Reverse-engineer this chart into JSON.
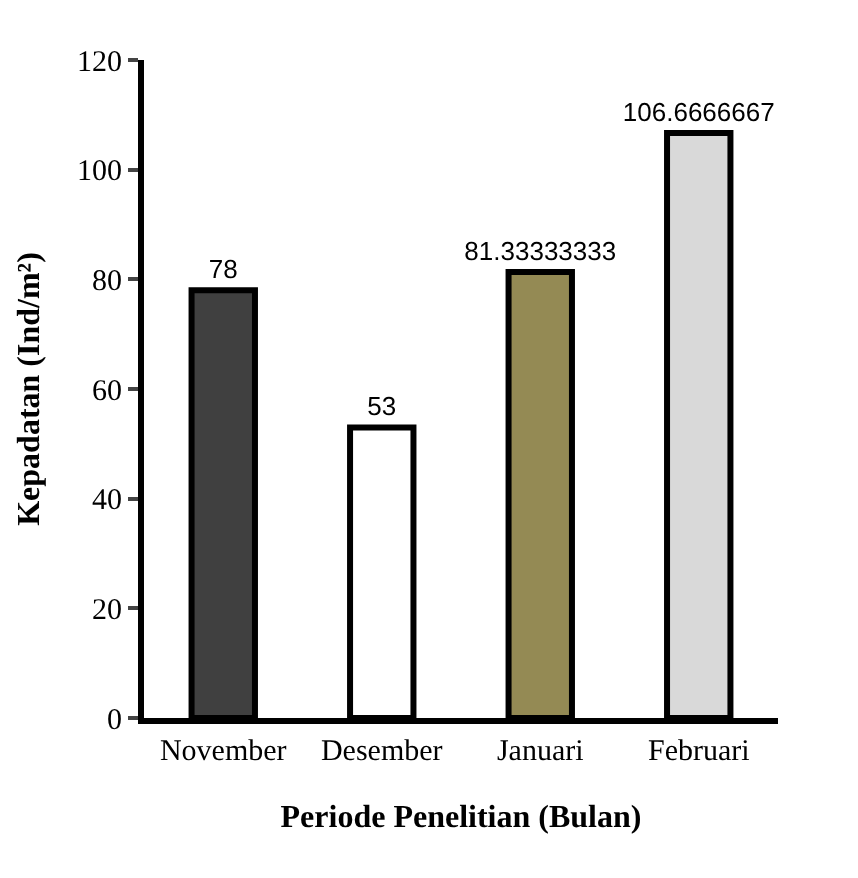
{
  "chart_data": {
    "type": "bar",
    "xlabel": "Periode Penelitian (Bulan)",
    "ylabel": "Kepadatan (Ind/m²)",
    "categories": [
      "November",
      "Desember",
      "Januari",
      "Februari"
    ],
    "values": [
      78,
      53,
      81.33333333,
      106.6666667
    ],
    "colors": [
      "#404040",
      "#ffffff",
      "#948a54",
      "#d9d9d9"
    ],
    "ylim": [
      0,
      120
    ],
    "yticks": [
      0,
      20,
      40,
      60,
      80,
      100,
      120
    ],
    "data_labels": true
  }
}
